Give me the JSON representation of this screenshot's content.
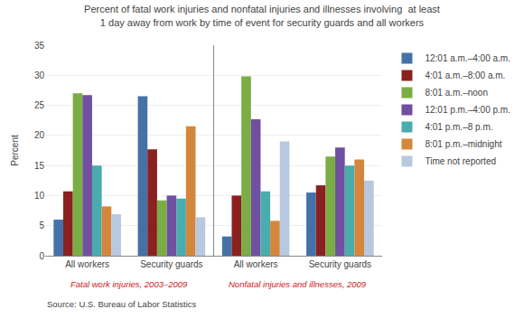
{
  "chart_data": {
    "type": "bar",
    "title": "Percent of fatal work injuries and nonfatal injuries and illnesses involving  at least\n1 day away from work by time of event for security guards and all workers",
    "ylabel": "Percent",
    "categories": [
      "All workers",
      "Security guards",
      "All workers",
      "Security guards"
    ],
    "series": [
      {
        "name": "12:01 a.m.–4:00 a.m.",
        "color": "#4472a8",
        "values": [
          6.0,
          26.5,
          3.2,
          10.5
        ]
      },
      {
        "name": "4:01 a.m.–8:00 a.m.",
        "color": "#8b2020",
        "values": [
          10.7,
          17.7,
          10.0,
          11.7
        ]
      },
      {
        "name": "8:01 a.m.–noon",
        "color": "#7aad44",
        "values": [
          27.0,
          9.2,
          29.8,
          16.5
        ]
      },
      {
        "name": "12:01 p.m.–4:00 p.m.",
        "color": "#7050a0",
        "values": [
          26.7,
          10.0,
          22.7,
          18.0
        ]
      },
      {
        "name": "4:01 p.m.–8 p.m.",
        "color": "#4aacac",
        "values": [
          15.0,
          9.5,
          10.7,
          15.0
        ]
      },
      {
        "name": "8:01 p.m.–midnight",
        "color": "#d4873c",
        "values": [
          8.2,
          21.5,
          5.8,
          16.0
        ]
      },
      {
        "name": "Time not reported",
        "color": "#b8c8e0",
        "values": [
          6.9,
          6.4,
          19.0,
          12.5
        ]
      }
    ],
    "annotations": [
      {
        "text": "Fatal work injuries, 2003–2009",
        "color": "#cc2222"
      },
      {
        "text": "Nonfatal injuries and illnesses, 2009",
        "color": "#cc2222"
      },
      {
        "text": "Source: U.S. Bureau of Labor Statistics"
      }
    ],
    "ylim": [
      0,
      35
    ],
    "yticks": [
      0,
      5,
      10,
      15,
      20,
      25,
      30,
      35
    ],
    "grid": true,
    "legend": "right"
  }
}
